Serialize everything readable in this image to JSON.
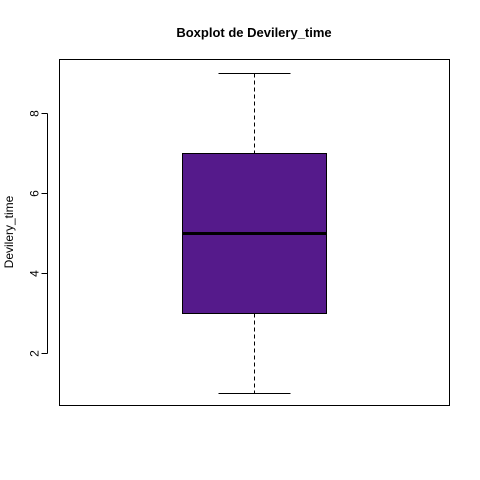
{
  "chart_data": {
    "type": "boxplot",
    "title": "Boxplot de Devilery_time",
    "xlabel": "",
    "ylabel": "Devilery_time",
    "ylim": [
      0.7,
      9.35
    ],
    "yticks": [
      2,
      4,
      6,
      8
    ],
    "stats": {
      "min": 1,
      "q1": 3,
      "median": 5,
      "q3": 7,
      "max": 9
    },
    "box_color": "#551A8B",
    "grid": false
  }
}
